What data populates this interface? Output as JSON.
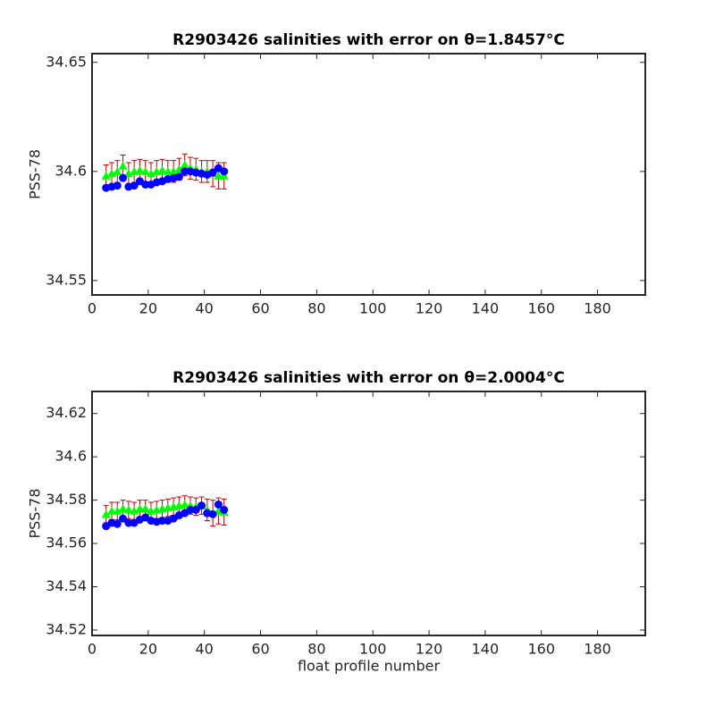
{
  "chart_data": [
    {
      "type": "scatter",
      "title": "R2903426 salinities with error on θ=1.8457°C",
      "y_label": "PSS-78",
      "x": [
        5,
        7,
        9,
        11,
        13,
        15,
        17,
        19,
        21,
        23,
        25,
        27,
        29,
        31,
        33,
        35,
        37,
        39,
        41,
        43,
        45,
        47
      ],
      "series": [
        {
          "color": "#00ff00",
          "marker": "triangle",
          "error_color": "#cc0000",
          "values": [
            34.598,
            34.599,
            34.6,
            34.6025,
            34.599,
            34.6,
            34.6005,
            34.6,
            34.599,
            34.6,
            34.6005,
            34.6,
            34.6,
            34.601,
            34.603,
            34.6015,
            34.601,
            34.6,
            34.6,
            34.599,
            34.598,
            34.598
          ],
          "errors": [
            0.005,
            0.005,
            0.005,
            0.005,
            0.005,
            0.005,
            0.005,
            0.005,
            0.005,
            0.005,
            0.005,
            0.005,
            0.005,
            0.005,
            0.005,
            0.005,
            0.005,
            0.005,
            0.005,
            0.006,
            0.006,
            0.006
          ]
        },
        {
          "color": "#0000ff",
          "marker": "circle",
          "values": [
            34.5925,
            34.593,
            34.5935,
            34.597,
            34.593,
            34.5935,
            34.5955,
            34.594,
            34.594,
            34.595,
            34.5955,
            34.5965,
            34.597,
            34.5975,
            34.6,
            34.6,
            34.5995,
            34.599,
            34.5985,
            34.5995,
            34.6015,
            34.6
          ]
        }
      ],
      "xlim": [
        0,
        197
      ],
      "xticks": [
        0,
        20,
        40,
        60,
        80,
        100,
        120,
        140,
        160,
        180
      ],
      "ylim": [
        34.5434,
        34.654
      ],
      "yticks": [
        34.55,
        34.6,
        34.65
      ]
    },
    {
      "type": "scatter",
      "title": "R2903426 salinities with error on θ=2.0004°C",
      "y_label": "PSS-78",
      "x_label": "float profile number",
      "x": [
        5,
        7,
        9,
        11,
        13,
        15,
        17,
        19,
        21,
        23,
        25,
        27,
        29,
        31,
        33,
        35,
        37,
        39,
        41,
        43,
        45,
        47
      ],
      "series": [
        {
          "color": "#00ff00",
          "marker": "triangle",
          "error_color": "#cc0000",
          "values": [
            34.5735,
            34.575,
            34.575,
            34.576,
            34.5755,
            34.575,
            34.576,
            34.576,
            34.575,
            34.5755,
            34.576,
            34.5765,
            34.577,
            34.5775,
            34.578,
            34.5775,
            34.577,
            34.5775,
            34.5755,
            34.574,
            34.575,
            34.5745
          ],
          "errors": [
            0.004,
            0.004,
            0.004,
            0.004,
            0.004,
            0.004,
            0.004,
            0.004,
            0.004,
            0.004,
            0.004,
            0.004,
            0.004,
            0.004,
            0.004,
            0.004,
            0.004,
            0.004,
            0.005,
            0.006,
            0.006,
            0.006
          ]
        },
        {
          "color": "#0000ff",
          "marker": "circle",
          "values": [
            34.568,
            34.5695,
            34.569,
            34.5715,
            34.5695,
            34.5695,
            34.571,
            34.572,
            34.5705,
            34.57,
            34.5705,
            34.5705,
            34.5715,
            34.573,
            34.574,
            34.5755,
            34.5755,
            34.5775,
            34.574,
            34.5735,
            34.578,
            34.5755
          ]
        }
      ],
      "xlim": [
        0,
        197
      ],
      "xticks": [
        0,
        20,
        40,
        60,
        80,
        100,
        120,
        140,
        160,
        180
      ],
      "ylim": [
        34.5175,
        34.6302
      ],
      "yticks": [
        34.52,
        34.54,
        34.56,
        34.58,
        34.6,
        34.62
      ]
    }
  ]
}
